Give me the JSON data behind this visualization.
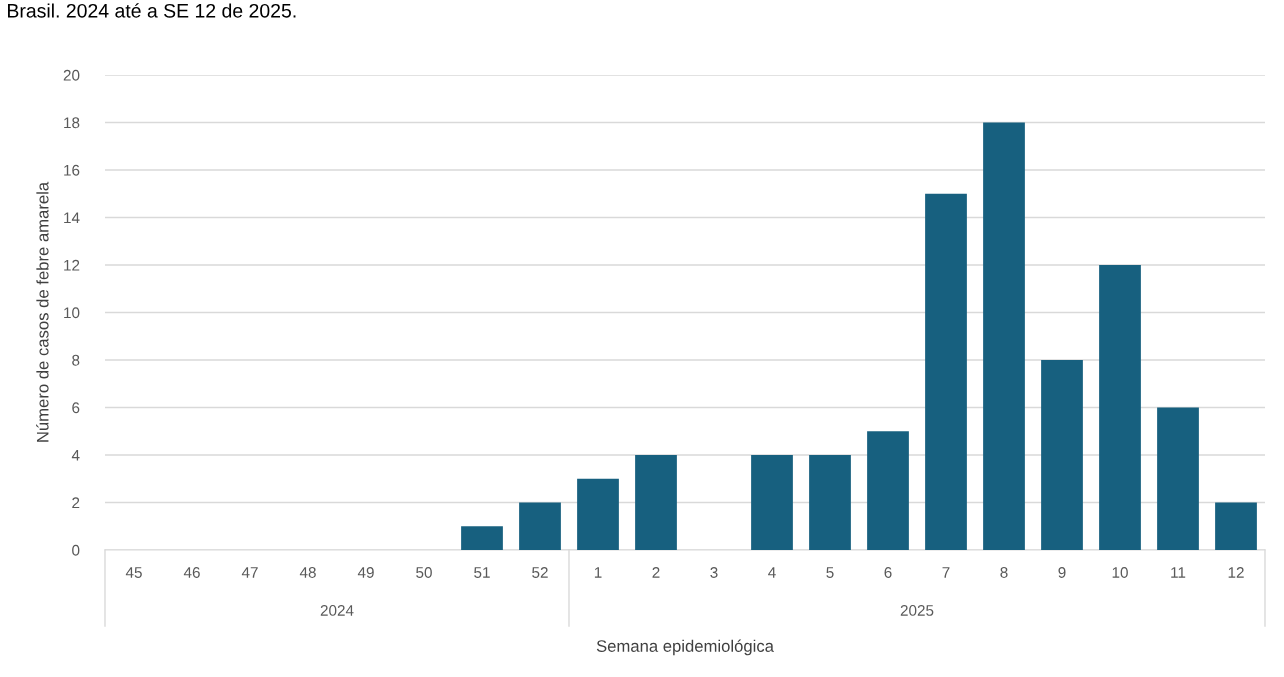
{
  "chart_data": {
    "type": "bar",
    "title": "Brasil. 2024 até a SE 12 de 2025.",
    "xlabel": "Semana epidemiológica",
    "ylabel": "Número de casos de febre amarela",
    "categories": [
      "45",
      "46",
      "47",
      "48",
      "49",
      "50",
      "51",
      "52",
      "1",
      "2",
      "3",
      "4",
      "5",
      "6",
      "7",
      "8",
      "9",
      "10",
      "11",
      "12"
    ],
    "values": [
      0,
      0,
      0,
      0,
      0,
      0,
      1,
      2,
      3,
      4,
      0,
      4,
      4,
      5,
      15,
      18,
      8,
      12,
      6,
      2
    ],
    "color": "#17607f",
    "ylim": [
      0,
      20
    ],
    "yticks": [
      0,
      2,
      4,
      6,
      8,
      10,
      12,
      14,
      16,
      18,
      20
    ],
    "grid": "y",
    "legend": false,
    "annotations": [
      "2024",
      "2025"
    ]
  }
}
